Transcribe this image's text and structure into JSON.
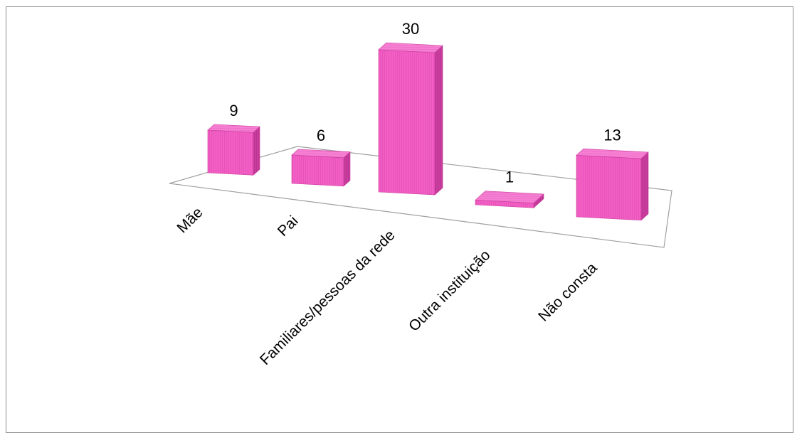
{
  "chart_data": {
    "type": "bar",
    "style": "3d-column",
    "categories": [
      "Mãe",
      "Pai",
      "Familiares/pessoas da rede",
      "Outra instituição",
      "Não consta"
    ],
    "values": [
      9,
      6,
      30,
      1,
      13
    ],
    "data_labels": [
      "9",
      "6",
      "30",
      "1",
      "13"
    ],
    "title": "",
    "xlabel": "",
    "ylabel": "",
    "ylim": [
      0,
      30
    ],
    "grid": false,
    "legend": "none",
    "colors": {
      "bar_front": "#f25fc4",
      "bar_side": "#c93d9d",
      "bar_top": "#f77fd3",
      "floor_line": "#a0a0a0",
      "frame": "#8c8c8c"
    }
  }
}
